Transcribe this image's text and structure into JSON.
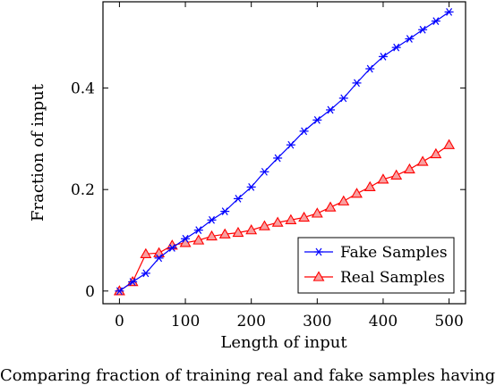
{
  "chart_data": {
    "type": "line",
    "xlabel": "Length of input",
    "ylabel": "Fraction of input",
    "xlim": [
      -25,
      525
    ],
    "ylim": [
      -0.025,
      0.57
    ],
    "xticks": [
      0,
      100,
      200,
      300,
      400,
      500
    ],
    "yticks": [
      0,
      0.2,
      0.4
    ],
    "ytick_labels": [
      "0",
      "0.2",
      "0.4"
    ],
    "legend_position": "bottom-right",
    "grid": false,
    "x": [
      0,
      20,
      40,
      60,
      80,
      100,
      120,
      140,
      160,
      180,
      200,
      220,
      240,
      260,
      280,
      300,
      320,
      340,
      360,
      380,
      400,
      420,
      440,
      460,
      480,
      500
    ],
    "series": [
      {
        "name": "Fake Samples",
        "color": "#0000ff",
        "marker": "asterisk",
        "values": [
          0.0,
          0.018,
          0.035,
          0.065,
          0.085,
          0.103,
          0.12,
          0.14,
          0.157,
          0.182,
          0.205,
          0.235,
          0.262,
          0.288,
          0.315,
          0.337,
          0.357,
          0.38,
          0.41,
          0.438,
          0.462,
          0.48,
          0.497,
          0.515,
          0.532,
          0.55
        ]
      },
      {
        "name": "Real Samples",
        "color": "#ff0000",
        "marker": "triangle",
        "values": [
          0.0,
          0.018,
          0.073,
          0.075,
          0.09,
          0.095,
          0.1,
          0.108,
          0.112,
          0.115,
          0.12,
          0.128,
          0.135,
          0.14,
          0.145,
          0.153,
          0.165,
          0.177,
          0.192,
          0.205,
          0.22,
          0.228,
          0.24,
          0.255,
          0.27,
          0.288
        ]
      }
    ]
  },
  "caption": "Comparing fraction of training real and fake samples having"
}
